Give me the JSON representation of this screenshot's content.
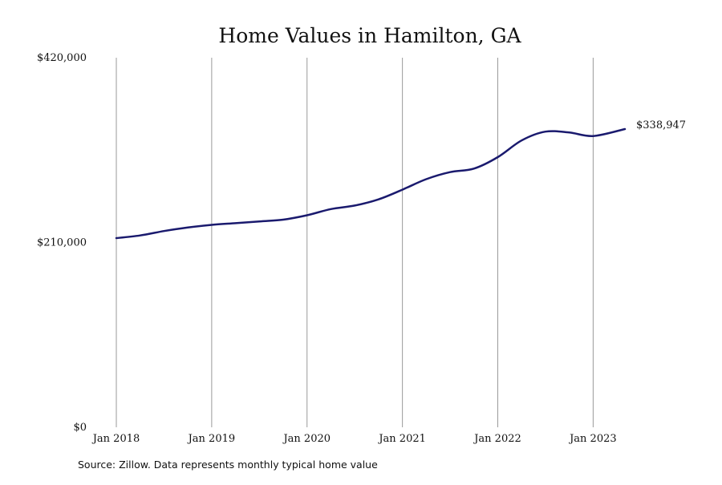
{
  "chart_data": {
    "type": "line",
    "title": "Home Values in Hamilton, GA",
    "xlabel": "",
    "ylabel": "",
    "x_range": [
      "2018-01",
      "2023-05"
    ],
    "ylim": [
      0,
      420000
    ],
    "y_ticks": [
      {
        "value": 0,
        "label": "$0"
      },
      {
        "value": 210000,
        "label": "$210,000"
      },
      {
        "value": 420000,
        "label": "$420,000"
      }
    ],
    "x_ticks": [
      {
        "date": "2018-01",
        "label": "Jan 2018"
      },
      {
        "date": "2019-01",
        "label": "Jan 2019"
      },
      {
        "date": "2020-01",
        "label": "Jan 2020"
      },
      {
        "date": "2021-01",
        "label": "Jan 2021"
      },
      {
        "date": "2022-01",
        "label": "Jan 2022"
      },
      {
        "date": "2023-01",
        "label": "Jan 2023"
      }
    ],
    "grid": "vertical",
    "series": [
      {
        "color": "#1a1a6e",
        "end_label": "$338,947",
        "points": [
          [
            "2018-01",
            215000
          ],
          [
            "2018-04",
            218000
          ],
          [
            "2018-07",
            223000
          ],
          [
            "2018-10",
            227000
          ],
          [
            "2019-01",
            230000
          ],
          [
            "2019-04",
            232000
          ],
          [
            "2019-07",
            234000
          ],
          [
            "2019-10",
            236000
          ],
          [
            "2020-01",
            241000
          ],
          [
            "2020-04",
            248000
          ],
          [
            "2020-07",
            252000
          ],
          [
            "2020-10",
            259000
          ],
          [
            "2021-01",
            270000
          ],
          [
            "2021-04",
            282000
          ],
          [
            "2021-07",
            290000
          ],
          [
            "2021-10",
            294000
          ],
          [
            "2022-01",
            307000
          ],
          [
            "2022-04",
            326000
          ],
          [
            "2022-07",
            336000
          ],
          [
            "2022-10",
            335000
          ],
          [
            "2023-01",
            331000
          ],
          [
            "2023-05",
            338947
          ]
        ]
      }
    ]
  },
  "source_note": "Source: Zillow. Data represents monthly typical home value"
}
